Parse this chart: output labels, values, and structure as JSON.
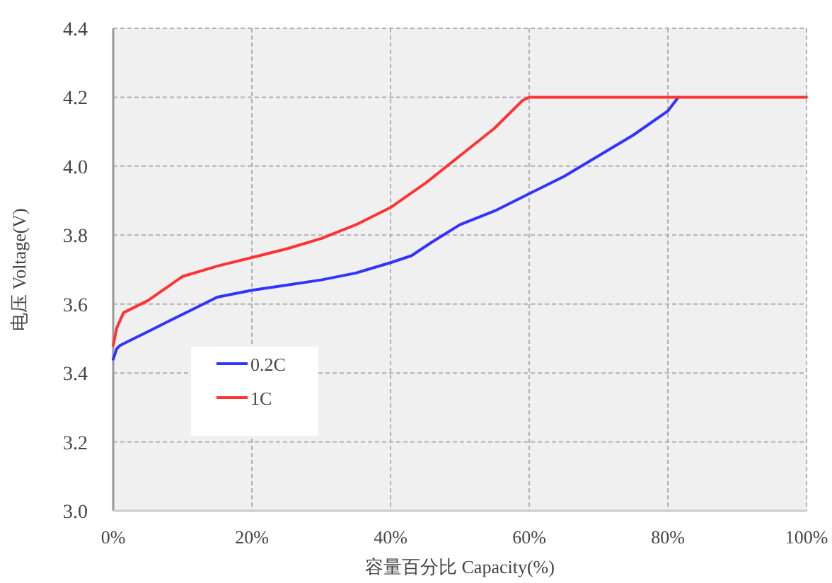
{
  "chart_data": {
    "type": "line",
    "xlabel": "容量百分比 Capacity(%)",
    "ylabel": "电压 Voltage(V)",
    "xlim": [
      0,
      100
    ],
    "ylim": [
      3.0,
      4.4
    ],
    "xticks": [
      {
        "value": 0,
        "label": "0%"
      },
      {
        "value": 20,
        "label": "20%"
      },
      {
        "value": 40,
        "label": "40%"
      },
      {
        "value": 60,
        "label": "60%"
      },
      {
        "value": 80,
        "label": "80%"
      },
      {
        "value": 100,
        "label": "100%"
      }
    ],
    "yticks": [
      {
        "value": 3.0,
        "label": "3.0"
      },
      {
        "value": 3.2,
        "label": "3.2"
      },
      {
        "value": 3.4,
        "label": "3.4"
      },
      {
        "value": 3.6,
        "label": "3.6"
      },
      {
        "value": 3.8,
        "label": "3.8"
      },
      {
        "value": 4.0,
        "label": "4.0"
      },
      {
        "value": 4.2,
        "label": "4.2"
      },
      {
        "value": 4.4,
        "label": "4.4"
      }
    ],
    "grid": true,
    "legend": "left",
    "marker": "none",
    "line_style": "solid",
    "series": [
      {
        "name": "0.2C",
        "color": "#3333ff",
        "x": [
          0,
          0.5,
          1,
          2,
          5,
          8,
          11,
          15,
          20,
          25,
          30,
          35,
          40,
          43,
          46,
          50,
          55,
          60,
          65,
          70,
          75,
          80,
          81.5
        ],
        "values": [
          3.44,
          3.47,
          3.48,
          3.49,
          3.52,
          3.55,
          3.58,
          3.62,
          3.64,
          3.655,
          3.67,
          3.69,
          3.72,
          3.74,
          3.78,
          3.83,
          3.87,
          3.92,
          3.97,
          4.03,
          4.09,
          4.16,
          4.2
        ]
      },
      {
        "name": "1C",
        "color": "#ff3333",
        "x": [
          0,
          0.5,
          1.5,
          5,
          10,
          15,
          20,
          25,
          30,
          35,
          40,
          45,
          50,
          55,
          59,
          60,
          100
        ],
        "values": [
          3.48,
          3.53,
          3.575,
          3.61,
          3.68,
          3.71,
          3.735,
          3.76,
          3.79,
          3.83,
          3.88,
          3.95,
          4.03,
          4.11,
          4.19,
          4.2,
          4.2
        ]
      }
    ]
  }
}
